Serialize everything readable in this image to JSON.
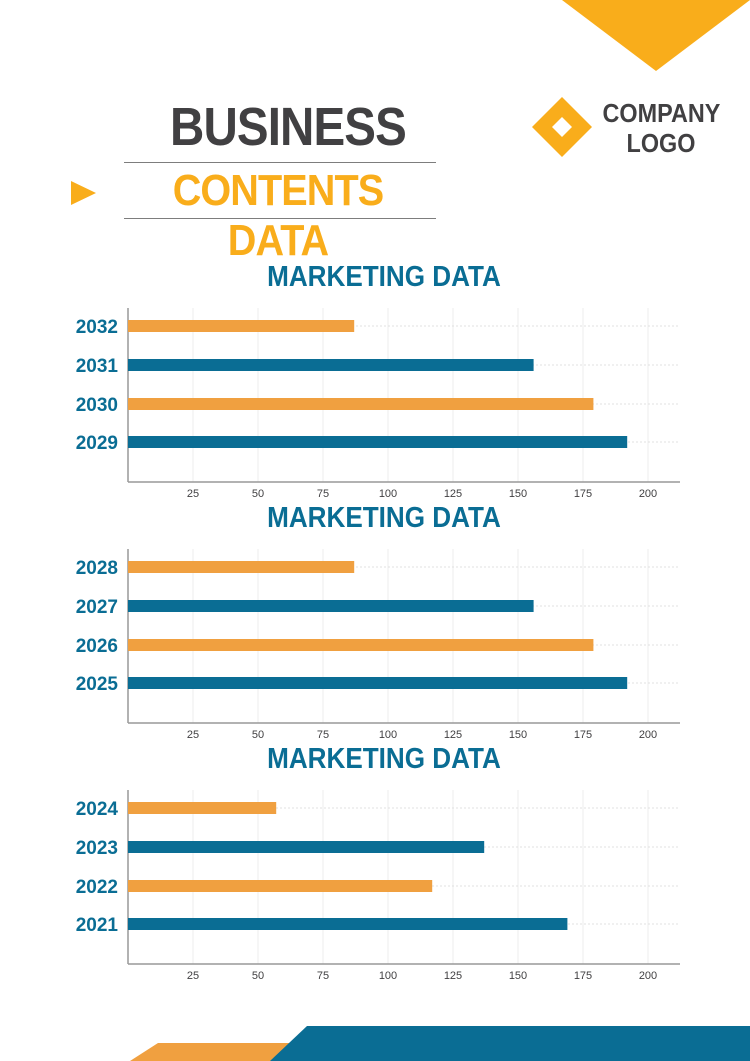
{
  "header": {
    "title": "BUSINESS",
    "subtitle": "CONTENTS DATA",
    "logo_line1": "COMPANY",
    "logo_line2": "LOGO"
  },
  "colors": {
    "blue": "#0a6d94",
    "orange": "#f0a040",
    "yellow": "#f9ad1b",
    "dark": "#414042"
  },
  "chart_data": [
    {
      "type": "bar",
      "orientation": "horizontal",
      "title": "MARKETING DATA",
      "categories": [
        "2032",
        "2031",
        "2030",
        "2029"
      ],
      "values": [
        87,
        156,
        179,
        192
      ],
      "bar_colors": [
        "orange",
        "blue",
        "orange",
        "blue"
      ],
      "xticks": [
        25,
        50,
        75,
        100,
        125,
        150,
        175,
        200
      ],
      "xlim": [
        0,
        212
      ],
      "grid": true
    },
    {
      "type": "bar",
      "orientation": "horizontal",
      "title": "MARKETING DATA",
      "categories": [
        "2028",
        "2027",
        "2026",
        "2025"
      ],
      "values": [
        87,
        156,
        179,
        192
      ],
      "bar_colors": [
        "orange",
        "blue",
        "orange",
        "blue"
      ],
      "xticks": [
        25,
        50,
        75,
        100,
        125,
        150,
        175,
        200
      ],
      "xlim": [
        0,
        212
      ],
      "grid": true
    },
    {
      "type": "bar",
      "orientation": "horizontal",
      "title": "MARKETING DATA",
      "categories": [
        "2024",
        "2023",
        "2022",
        "2021"
      ],
      "values": [
        57,
        137,
        117,
        169
      ],
      "bar_colors": [
        "orange",
        "blue",
        "orange",
        "blue"
      ],
      "xticks": [
        25,
        50,
        75,
        100,
        125,
        150,
        175,
        200
      ],
      "xlim": [
        0,
        212
      ],
      "grid": true
    }
  ]
}
